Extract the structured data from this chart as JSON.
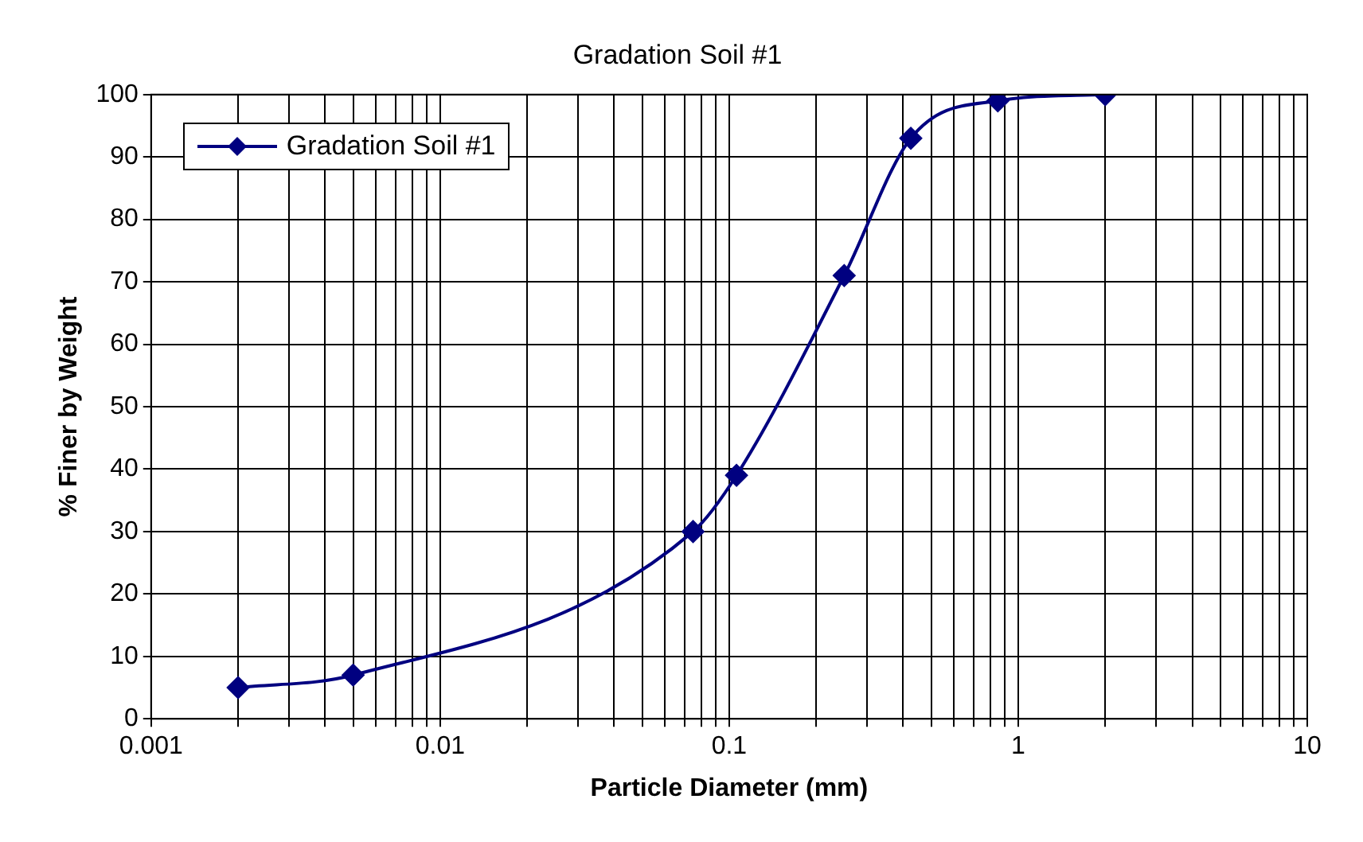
{
  "chart_data": {
    "type": "line",
    "title": "Gradation Soil #1",
    "xlabel": "Particle Diameter (mm)",
    "ylabel": "% Finer by Weight",
    "x": [
      0.002,
      0.005,
      0.075,
      0.106,
      0.25,
      0.425,
      0.85,
      2
    ],
    "series": [
      {
        "name": "Gradation Soil #1",
        "color": "#000080",
        "values": [
          5,
          7,
          30,
          39,
          71,
          93,
          99,
          100
        ]
      }
    ],
    "log": "x",
    "xlim": [
      0.001,
      10
    ],
    "xticks": [
      0.001,
      {
        "value": 0.002,
        "label": null
      },
      {
        "value": 0.003,
        "label": null
      },
      {
        "value": 0.004,
        "label": null
      },
      {
        "value": 0.005,
        "label": null
      },
      {
        "value": 0.006,
        "label": null
      },
      {
        "value": 0.007,
        "label": null
      },
      {
        "value": 0.008,
        "label": null
      },
      {
        "value": 0.009,
        "label": null
      },
      0.01,
      {
        "value": 0.02,
        "label": null
      },
      {
        "value": 0.03,
        "label": null
      },
      {
        "value": 0.04,
        "label": null
      },
      {
        "value": 0.05,
        "label": null
      },
      {
        "value": 0.06,
        "label": null
      },
      {
        "value": 0.07,
        "label": null
      },
      {
        "value": 0.08,
        "label": null
      },
      {
        "value": 0.09,
        "label": null
      },
      0.1,
      {
        "value": 0.2,
        "label": null
      },
      {
        "value": 0.3,
        "label": null
      },
      {
        "value": 0.4,
        "label": null
      },
      {
        "value": 0.5,
        "label": null
      },
      {
        "value": 0.6,
        "label": null
      },
      {
        "value": 0.7,
        "label": null
      },
      {
        "value": 0.8,
        "label": null
      },
      {
        "value": 0.9,
        "label": null
      },
      1,
      {
        "value": 2,
        "label": null
      },
      {
        "value": 3,
        "label": null
      },
      {
        "value": 4,
        "label": null
      },
      {
        "value": 5,
        "label": null
      },
      {
        "value": 6,
        "label": null
      },
      {
        "value": 7,
        "label": null
      },
      {
        "value": 8,
        "label": null
      },
      {
        "value": 9,
        "label": null
      },
      10
    ],
    "ylim": [
      0,
      100
    ],
    "yticks": [
      0,
      10,
      20,
      30,
      40,
      50,
      60,
      70,
      80,
      90,
      100
    ],
    "grid": true,
    "legend": "top left",
    "marker": "diamond",
    "line_style": "solid"
  }
}
